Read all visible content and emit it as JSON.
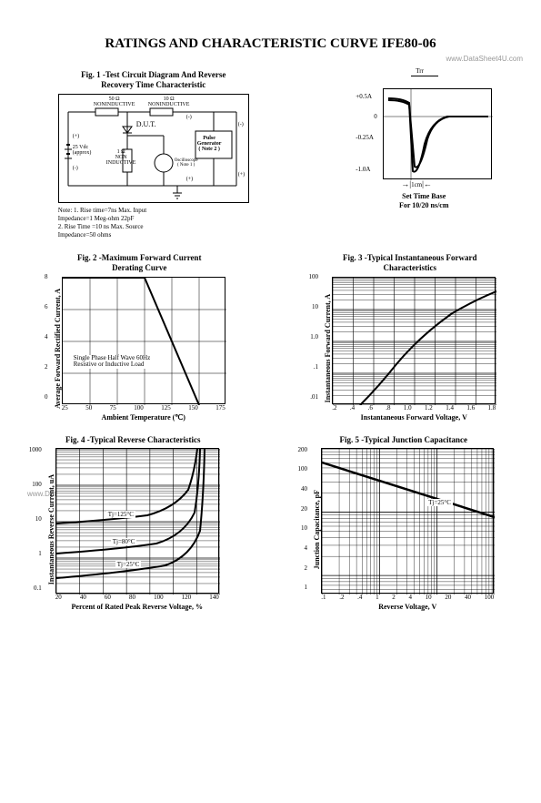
{
  "watermark": "www.DataSheet4U.com",
  "page_title": "RATINGS AND CHARACTERISTIC CURVE IFE80-06",
  "fig1": {
    "title": "Fig. 1 -Test Circuit Diagram And Reverse\nRecovery Time Characteristic",
    "labels": {
      "r50": "50 Ω\nNONINDUCTIVE",
      "r10": "10 Ω\nNONINDUCTIVE",
      "dut": "D.U.T.",
      "vdc": "25 Vdc\n(approx)",
      "r1": "1 Ω\nNON\nINDUCTIVE",
      "pulse": "Pulse\nGenerator\n( Note 2 )",
      "osc": "Oscilloscope\n( Note 1 )",
      "plus": "(+)",
      "minus": "(-)"
    },
    "notes": "Note: 1. Rise time=7ns Max. Input\n          Impedance=1 Meg-ohm 22pF\n      2. Rise Time =10 ns Max. Source\n          Impedance=50 ohms",
    "scope": {
      "trr": "Trr",
      "y_ticks": [
        "+0.5A",
        "0",
        "-0.25A",
        "-1.0A"
      ],
      "tcm": "1cm",
      "caption": "Set Time Base\nFor 10/20 ns/cm",
      "background": "#ffffff",
      "line_color": "#000000"
    }
  },
  "fig2": {
    "title": "Fig. 2 -Maximum Forward Current\nDerating Curve",
    "ylabel": "Average Forward Rectified Current, A",
    "xlabel": "Ambient Temperature (℃)",
    "x_ticks": [
      "25",
      "50",
      "75",
      "100",
      "125",
      "150",
      "175"
    ],
    "y_ticks": [
      "0",
      "2",
      "4",
      "6",
      "8"
    ],
    "note": "Single Phase Half Wave 60Hz\nResistive or Inductive Load",
    "line_color": "#000000",
    "grid_color": "#000000",
    "data_x": [
      25,
      100,
      150
    ],
    "data_y": [
      8,
      8,
      0
    ]
  },
  "fig3": {
    "title": "Fig. 3 -Typical Instantaneous Forward\nCharacteristics",
    "ylabel": "Instantaneous Forward Current, A",
    "xlabel": "Instantaneous Forward Voltage, V",
    "x_ticks": [
      ".2",
      ".4",
      ".6",
      ".8",
      "1.0",
      "1.2",
      "1.4",
      "1.6",
      "1.8"
    ],
    "y_ticks": [
      ".01",
      ".1",
      "1.0",
      "10",
      "100"
    ],
    "line_color": "#000000",
    "grid_color": "#000000",
    "data": [
      [
        0.45,
        0.01
      ],
      [
        0.6,
        0.04
      ],
      [
        0.8,
        0.25
      ],
      [
        1.0,
        1.2
      ],
      [
        1.2,
        4
      ],
      [
        1.4,
        10
      ],
      [
        1.6,
        20
      ],
      [
        1.8,
        30
      ]
    ]
  },
  "fig4": {
    "title": "Fig. 4 -Typical Reverse Characteristics",
    "ylabel": "Instantaneous Reverse Current, uA",
    "xlabel": "Percent of Rated Peak Reverse Voltage, %",
    "x_ticks": [
      "20",
      "40",
      "60",
      "80",
      "100",
      "120",
      "140"
    ],
    "y_ticks": [
      "0.1",
      "1",
      "10",
      "100",
      "1000"
    ],
    "curves": {
      "t125": "Tj=125°C",
      "t80": "Tj=80°C",
      "t25": "Tj=25°C"
    },
    "line_color": "#000000",
    "grid_color": "#000000"
  },
  "fig5": {
    "title": "Fig. 5 -Typical Junction Capacitance",
    "ylabel": "Junction Capacitance, pF",
    "xlabel": "Reverse Voltage, V",
    "x_ticks": [
      ".1",
      ".2",
      ".4",
      "1",
      "2",
      "4",
      "10",
      "20",
      "40",
      "100"
    ],
    "y_ticks": [
      "1",
      "2",
      "4",
      "10",
      "20",
      "40",
      "100",
      "200"
    ],
    "curve_label": "Tj=25°C",
    "line_color": "#000000",
    "grid_color": "#000000",
    "data": [
      [
        0.1,
        120
      ],
      [
        1,
        70
      ],
      [
        10,
        35
      ],
      [
        100,
        18
      ]
    ]
  }
}
